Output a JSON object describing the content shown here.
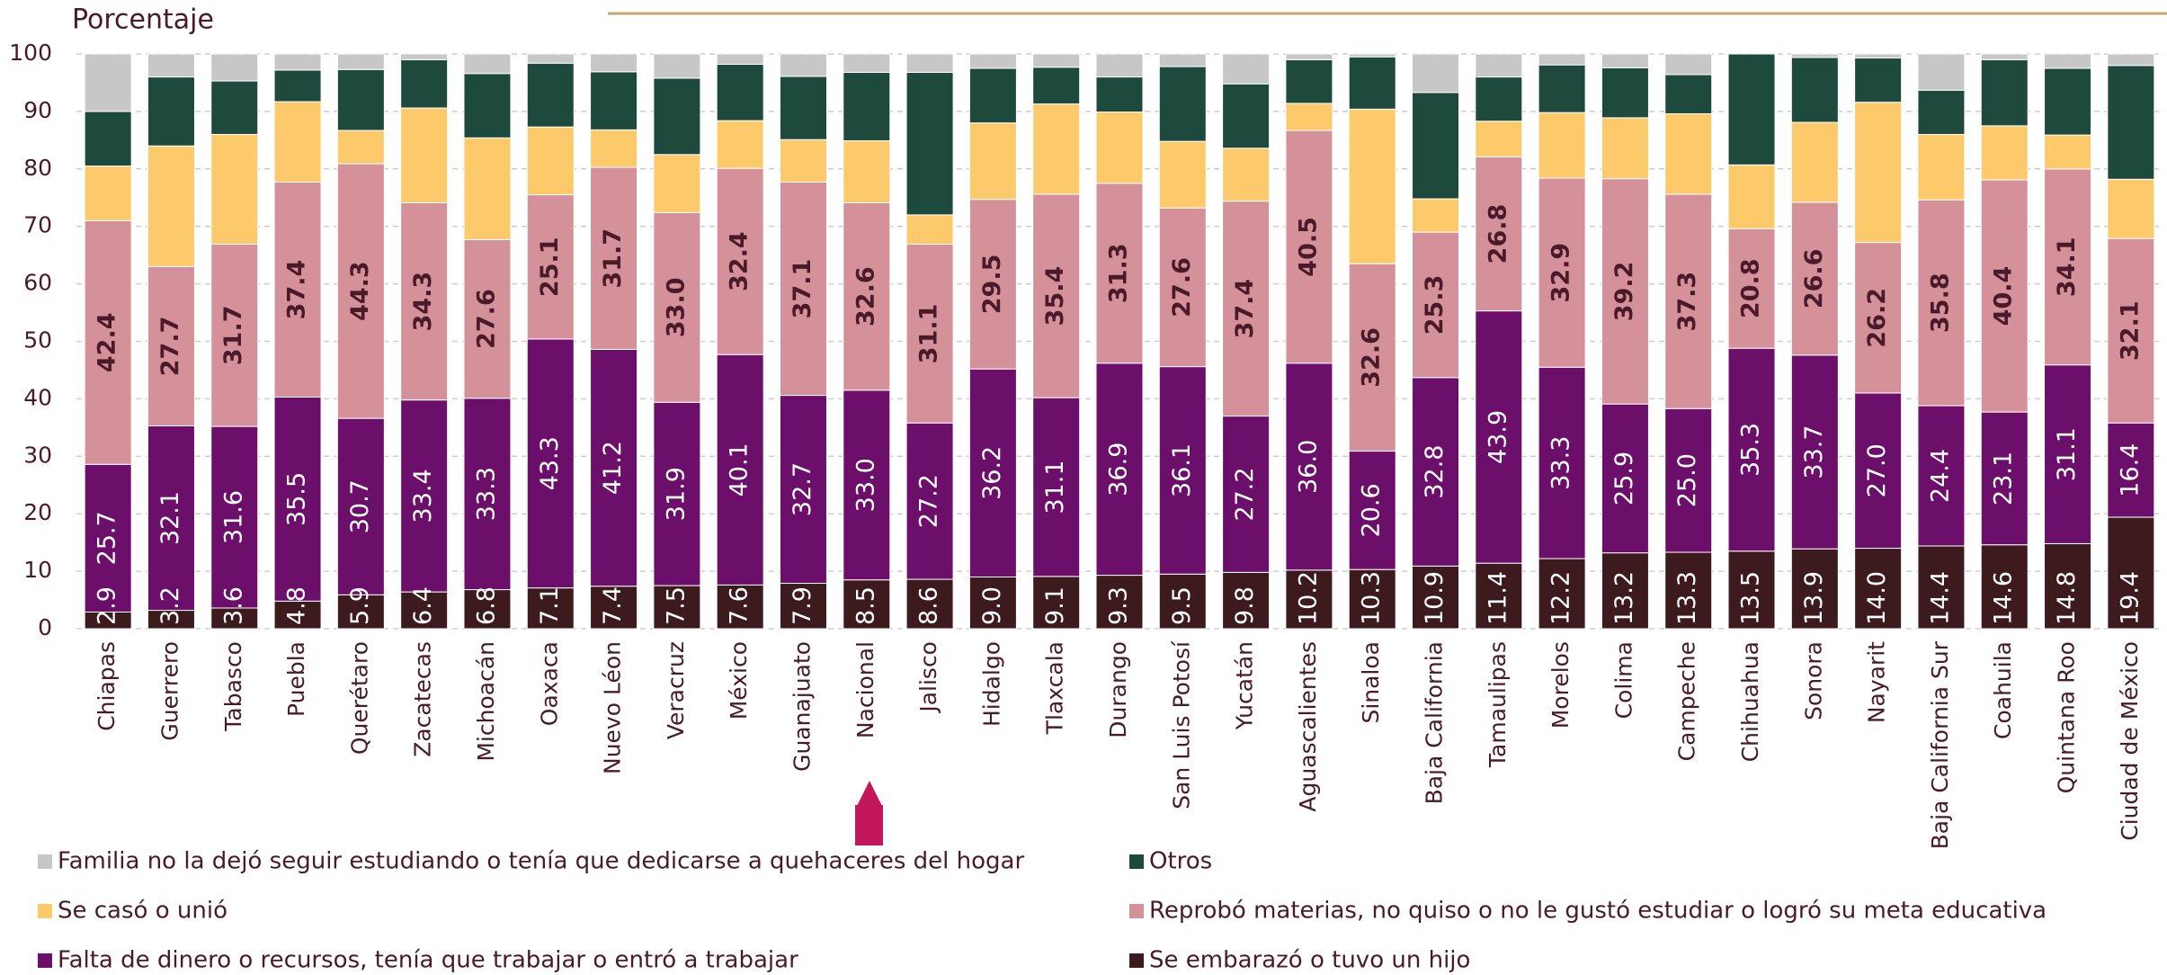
{
  "chart_data": {
    "type": "stacked_bar",
    "y_label": "Porcentaje",
    "categories": [
      "Chiapas",
      "Guerrero",
      "Tabasco",
      "Puebla",
      "Querétaro",
      "Zacatecas",
      "Michoacán",
      "Oaxaca",
      "Nuevo Léon",
      "Veracruz",
      "México",
      "Guanajuato",
      "Nacional",
      "Jalisco",
      "Hidalgo",
      "Tlaxcala",
      "Durango",
      "San Luis Potosí",
      "Yucatán",
      "Aguascalientes",
      "Sinaloa",
      "Baja California",
      "Tamaulipas",
      "Morelos",
      "Colima",
      "Campeche",
      "Chihuahua",
      "Sonora",
      "Nayarit",
      "Baja California Sur",
      "Coahuila",
      "Quintana Roo",
      "Ciudad de México"
    ],
    "ylim": [
      0,
      100
    ],
    "yticks": [
      0,
      10,
      20,
      30,
      40,
      50,
      60,
      70,
      80,
      90,
      100
    ],
    "grid": true,
    "series": [
      {
        "name": "Se embarazó o tuvo un hijo",
        "color": "#3d1a1e",
        "values": [
          2.9,
          3.2,
          3.6,
          4.8,
          5.9,
          6.4,
          6.8,
          7.1,
          7.4,
          7.5,
          7.6,
          7.9,
          8.5,
          8.6,
          9.0,
          9.1,
          9.3,
          9.5,
          9.8,
          10.2,
          10.3,
          10.9,
          11.4,
          12.2,
          13.2,
          13.3,
          13.5,
          13.9,
          14.0,
          14.4,
          14.6,
          14.8,
          19.4
        ],
        "value_labels": [
          "2.9",
          "3.2",
          "3.6",
          "4.8",
          "5.9",
          "6.4",
          "6.8",
          "7.1",
          "7.4",
          "7.5",
          "7.6",
          "7.9",
          "8.5",
          "8.6",
          "9.0",
          "9.1",
          "9.3",
          "9.5",
          "9.8",
          "10.2",
          "10.3",
          "10.9",
          "11.4",
          "12.2",
          "13.2",
          "13.3",
          "13.5",
          "13.9",
          "14.0",
          "14.4",
          "14.6",
          "14.8",
          "19.4"
        ]
      },
      {
        "name": "Falta de dinero o recursos, tenía que trabajar o entró a trabajar",
        "color": "#6b0f6b",
        "values": [
          25.7,
          32.1,
          31.6,
          35.5,
          30.7,
          33.4,
          33.3,
          43.3,
          41.2,
          31.9,
          40.1,
          32.7,
          33.0,
          27.2,
          36.2,
          31.1,
          36.9,
          36.1,
          27.2,
          36.0,
          20.6,
          32.8,
          43.9,
          33.3,
          25.9,
          25.0,
          35.3,
          33.7,
          27.0,
          24.4,
          23.1,
          31.1,
          16.4
        ],
        "value_labels": [
          "25.7",
          "32.1",
          "31.6",
          "35.5",
          "30.7",
          "33.4",
          "33.3",
          "43.3",
          "41.2",
          "31.9",
          "40.1",
          "32.7",
          "33.0",
          "27.2",
          "36.2",
          "31.1",
          "36.9",
          "36.1",
          "27.2",
          "36.0",
          "20.6",
          "32.8",
          "43.9",
          "33.3",
          "25.9",
          "25.0",
          "35.3",
          "33.7",
          "27.0",
          "24.4",
          "23.1",
          "31.1",
          "16.4"
        ]
      },
      {
        "name": "Reprobó materias, no quiso o no le gustó estudiar o logró su meta educativa",
        "color": "#d4919a",
        "values": [
          42.4,
          27.7,
          31.7,
          37.4,
          44.3,
          34.3,
          27.6,
          25.1,
          31.7,
          33.0,
          32.4,
          37.1,
          32.6,
          31.1,
          29.5,
          35.4,
          31.3,
          27.6,
          37.4,
          40.5,
          32.6,
          25.3,
          26.8,
          32.9,
          39.2,
          37.3,
          20.8,
          26.6,
          26.2,
          35.8,
          40.4,
          34.1,
          32.1
        ],
        "value_labels": [
          "42.4",
          "27.7",
          "31.7",
          "37.4",
          "44.3",
          "34.3",
          "27.6",
          "25.1",
          "31.7",
          "33.0",
          "32.4",
          "37.1",
          "32.6",
          "31.1",
          "29.5",
          "35.4",
          "31.3",
          "27.6",
          "37.4",
          "40.5",
          "32.6",
          "25.3",
          "26.8",
          "32.9",
          "39.2",
          "37.3",
          "20.8",
          "26.6",
          "26.2",
          "35.8",
          "40.4",
          "34.1",
          "32.1"
        ]
      },
      {
        "name": "Se casó o unió",
        "color": "#fdca6b",
        "values": [
          9.5,
          21.0,
          19.1,
          14.0,
          5.8,
          16.5,
          17.7,
          11.8,
          6.5,
          10.1,
          8.3,
          7.4,
          10.8,
          5.1,
          13.3,
          15.7,
          12.4,
          11.6,
          9.2,
          4.7,
          26.9,
          5.8,
          6.2,
          11.4,
          10.6,
          14.0,
          11.1,
          13.9,
          24.4,
          11.4,
          9.4,
          5.9,
          10.3
        ]
      },
      {
        "name": "Otros",
        "color": "#1d4a3c",
        "values": [
          9.5,
          12.0,
          9.3,
          5.5,
          10.6,
          8.4,
          11.2,
          11.1,
          10.1,
          13.3,
          9.8,
          11.0,
          11.9,
          24.8,
          9.5,
          6.4,
          6.1,
          13.0,
          11.2,
          7.6,
          9.1,
          18.5,
          7.7,
          8.3,
          8.7,
          6.8,
          19.3,
          11.3,
          7.7,
          7.7,
          11.5,
          11.6,
          19.8
        ]
      },
      {
        "name": "Familia no la dejó seguir estudiando o tenía que dedicarse a quehaceres del hogar",
        "color": "#c7c7c7",
        "values": [
          10.0,
          4.0,
          4.7,
          2.8,
          2.7,
          1.0,
          3.4,
          1.6,
          3.1,
          4.2,
          1.8,
          3.9,
          3.2,
          3.2,
          2.5,
          2.3,
          4.0,
          2.2,
          5.2,
          1.0,
          0.5,
          6.7,
          4.0,
          1.9,
          2.4,
          3.6,
          0,
          0.6,
          0.7,
          6.3,
          1.0,
          2.5,
          2.0
        ]
      }
    ]
  }
}
